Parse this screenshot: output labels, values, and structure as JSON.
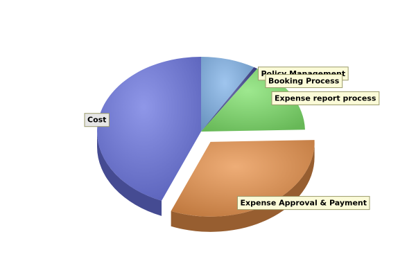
{
  "chart_data": {
    "type": "pie",
    "title": "",
    "slices": [
      {
        "label": "Policy Management",
        "value": 8.5,
        "color": "#7fb2e8"
      },
      {
        "label": "Booking Process",
        "value": 0.6,
        "color": "#3a3f8f"
      },
      {
        "label": "Expense report process",
        "value": 15.5,
        "color": "#7ee06a"
      },
      {
        "label": "Expense Approval & Payment",
        "value": 31.6,
        "color": "#e8914a"
      },
      {
        "label": "Cost",
        "value": 43.8,
        "color": "#6a74e0"
      }
    ],
    "exploded": [
      "Expense Approval & Payment"
    ],
    "legend": "none",
    "style": "3d"
  }
}
